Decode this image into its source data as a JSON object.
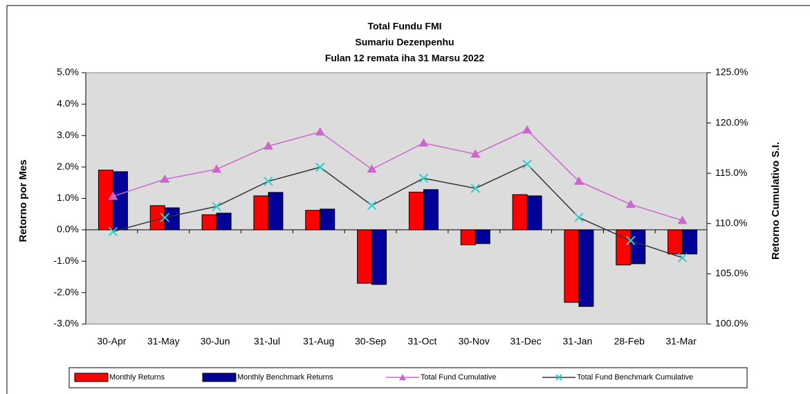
{
  "chart_data": {
    "type": "combo",
    "title": [
      "Total Fundu FMI",
      "Sumariu Dezenpenhu",
      "Fulan 12  remata  iha  31 Marsu  2022"
    ],
    "y_label": "Retorno por Mes",
    "y2_label": "Retorno  Cumulativo S.I.",
    "categories": [
      "30-Apr",
      "31-May",
      "30-Jun",
      "31-Jul",
      "31-Aug",
      "30-Sep",
      "31-Oct",
      "30-Nov",
      "31-Dec",
      "31-Jan",
      "28-Feb",
      "31-Mar"
    ],
    "ylim": [
      -3,
      5
    ],
    "yticks": [
      {
        "value": -3,
        "label": "-3.0%"
      },
      {
        "value": -2,
        "label": "-2.0%"
      },
      {
        "value": -1,
        "label": "-1.0%"
      },
      {
        "value": 0,
        "label": "0.0%"
      },
      {
        "value": 1,
        "label": "1.0%"
      },
      {
        "value": 2,
        "label": "2.0%"
      },
      {
        "value": 3,
        "label": "3.0%"
      },
      {
        "value": 4,
        "label": "4.0%"
      },
      {
        "value": 5,
        "label": "5.0%"
      }
    ],
    "y2lim": [
      100,
      125
    ],
    "y2ticks": [
      {
        "value": 100,
        "label": "100.0%"
      },
      {
        "value": 105,
        "label": "105.0%"
      },
      {
        "value": 110,
        "label": "110.0%"
      },
      {
        "value": 115,
        "label": "115.0%"
      },
      {
        "value": 120,
        "label": "120.0%"
      },
      {
        "value": 125,
        "label": "125.0%"
      }
    ],
    "legend": "bottom",
    "series": [
      {
        "name": "Monthly Returns",
        "kind": "bar",
        "color": "#ff0000",
        "values": [
          1.9,
          0.77,
          0.48,
          1.08,
          0.62,
          -1.7,
          1.2,
          -0.48,
          1.12,
          -2.31,
          -1.12,
          -0.77
        ]
      },
      {
        "name": "Monthly Benchmark Returns",
        "kind": "bar",
        "color": "#000099",
        "values": [
          1.85,
          0.7,
          0.53,
          1.19,
          0.66,
          -1.74,
          1.28,
          -0.44,
          1.08,
          -2.44,
          -1.08,
          -0.77
        ]
      },
      {
        "name": "Total Fund Cumulative",
        "kind": "line",
        "marker": "triangle",
        "axis": "y2",
        "color": "#cc66cc",
        "values": [
          112.7,
          114.4,
          115.4,
          117.7,
          119.1,
          115.4,
          118.0,
          116.9,
          119.3,
          114.2,
          111.9,
          110.3
        ]
      },
      {
        "name": "Total Fund Benchmark Cumulative",
        "kind": "line",
        "marker": "x",
        "axis": "y2",
        "color": "#333333",
        "marker_color": "#33cccc",
        "values": [
          109.2,
          110.6,
          111.7,
          114.2,
          115.6,
          111.8,
          114.5,
          113.5,
          115.9,
          110.6,
          108.3,
          106.6
        ]
      }
    ]
  }
}
